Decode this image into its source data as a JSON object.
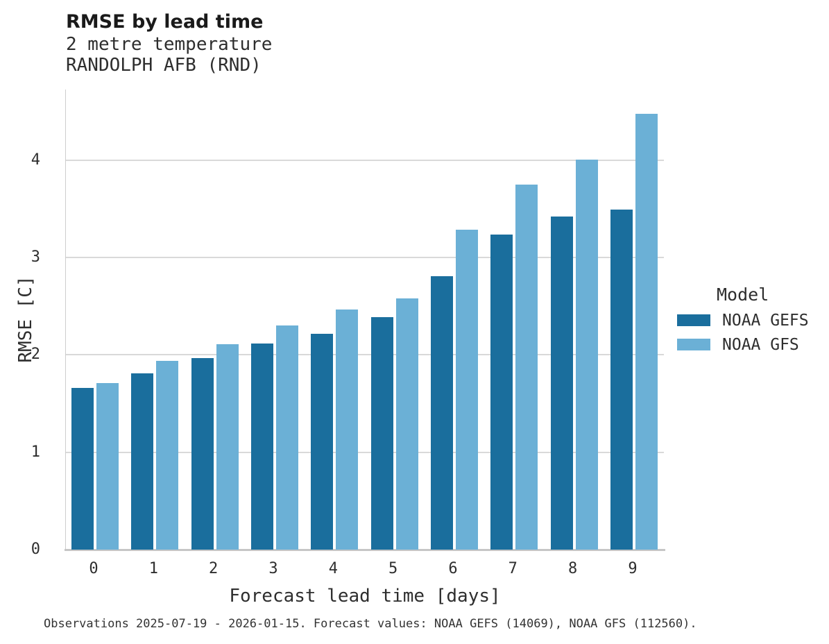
{
  "header": {
    "title": "RMSE by lead time",
    "subtitle_lines": [
      "2 metre temperature",
      "RANDOLPH AFB (RND)"
    ]
  },
  "chart_data": {
    "type": "bar",
    "title": "RMSE by lead time",
    "subtitle": "2 metre temperature — RANDOLPH AFB (RND)",
    "categories": [
      "0",
      "1",
      "2",
      "3",
      "4",
      "5",
      "6",
      "7",
      "8",
      "9"
    ],
    "series": [
      {
        "name": "NOAA GEFS",
        "color": "#1a6e9d",
        "values": [
          1.66,
          1.81,
          1.97,
          2.12,
          2.22,
          2.39,
          2.81,
          3.24,
          3.42,
          3.49
        ]
      },
      {
        "name": "NOAA GFS",
        "color": "#6bb0d6",
        "values": [
          1.71,
          1.94,
          2.11,
          2.3,
          2.47,
          2.58,
          3.29,
          3.75,
          4.01,
          4.48
        ]
      }
    ],
    "xlabel": "Forecast lead time [days]",
    "ylabel": "RMSE [C]",
    "ylim": [
      0,
      4.727
    ],
    "yticks": [
      0,
      1,
      2,
      3,
      4
    ],
    "grid": "horizontal",
    "legend_title": "Model",
    "legend_position": "right"
  },
  "footer": {
    "caption": "Observations 2025-07-19 - 2026-01-15. Forecast values: NOAA GEFS (14069), NOAA GFS (112560)."
  }
}
